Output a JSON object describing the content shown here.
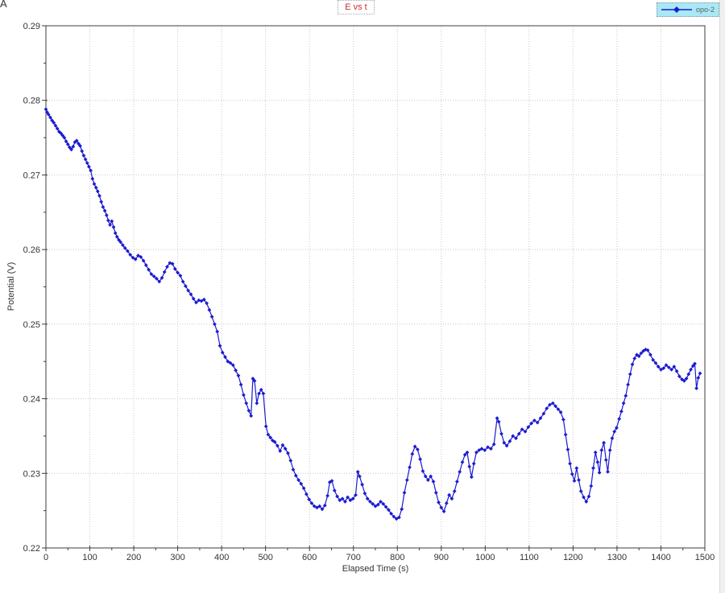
{
  "figure_label": "A",
  "colors": {
    "series": "#1b1bd0",
    "grid": "#c8c8c8",
    "axis": "#3d3d3d",
    "text": "#333333",
    "title": "#cc2b2b",
    "legend_bg": "#a9e9f5",
    "legend_text": "#556066"
  },
  "chart_data": {
    "type": "line",
    "title": "E vs t",
    "xlabel": "Elapsed Time (s)",
    "ylabel": "Potential (V)",
    "xlim": [
      0,
      1500
    ],
    "ylim": [
      0.22,
      0.29
    ],
    "x_ticks": [
      0,
      100,
      200,
      300,
      400,
      500,
      600,
      700,
      800,
      900,
      1000,
      1100,
      1200,
      1300,
      1400,
      1500
    ],
    "y_ticks": [
      0.22,
      0.23,
      0.24,
      0.25,
      0.26,
      0.27,
      0.28,
      0.29
    ],
    "x_minor_step": 50,
    "y_minor_step": 0.005,
    "grid": "dotted",
    "legend_position": "top-right",
    "series": [
      {
        "name": "opo-2",
        "marker": "diamond",
        "points": [
          [
            0,
            0.2788
          ],
          [
            3,
            0.2784
          ],
          [
            6,
            0.2781
          ],
          [
            10,
            0.2777
          ],
          [
            14,
            0.2773
          ],
          [
            18,
            0.277
          ],
          [
            22,
            0.2766
          ],
          [
            26,
            0.2762
          ],
          [
            30,
            0.2758
          ],
          [
            34,
            0.2756
          ],
          [
            38,
            0.2753
          ],
          [
            42,
            0.275
          ],
          [
            46,
            0.2745
          ],
          [
            50,
            0.2741
          ],
          [
            54,
            0.2737
          ],
          [
            58,
            0.2734
          ],
          [
            62,
            0.2738
          ],
          [
            66,
            0.2744
          ],
          [
            70,
            0.2746
          ],
          [
            74,
            0.2742
          ],
          [
            78,
            0.2739
          ],
          [
            82,
            0.2732
          ],
          [
            86,
            0.2726
          ],
          [
            90,
            0.2721
          ],
          [
            94,
            0.2716
          ],
          [
            98,
            0.2711
          ],
          [
            102,
            0.2706
          ],
          [
            106,
            0.2695
          ],
          [
            110,
            0.2688
          ],
          [
            114,
            0.2683
          ],
          [
            118,
            0.2678
          ],
          [
            122,
            0.2672
          ],
          [
            126,
            0.2664
          ],
          [
            130,
            0.2657
          ],
          [
            134,
            0.2652
          ],
          [
            138,
            0.2646
          ],
          [
            142,
            0.2639
          ],
          [
            146,
            0.2633
          ],
          [
            150,
            0.2638
          ],
          [
            154,
            0.263
          ],
          [
            158,
            0.2622
          ],
          [
            162,
            0.2617
          ],
          [
            166,
            0.2613
          ],
          [
            170,
            0.261
          ],
          [
            175,
            0.2606
          ],
          [
            180,
            0.2602
          ],
          [
            186,
            0.2598
          ],
          [
            192,
            0.2593
          ],
          [
            198,
            0.2589
          ],
          [
            204,
            0.2587
          ],
          [
            210,
            0.2592
          ],
          [
            216,
            0.259
          ],
          [
            222,
            0.2585
          ],
          [
            228,
            0.2579
          ],
          [
            234,
            0.2573
          ],
          [
            240,
            0.2567
          ],
          [
            246,
            0.2564
          ],
          [
            252,
            0.2561
          ],
          [
            258,
            0.2557
          ],
          [
            264,
            0.2562
          ],
          [
            270,
            0.257
          ],
          [
            276,
            0.2577
          ],
          [
            282,
            0.2582
          ],
          [
            288,
            0.2581
          ],
          [
            294,
            0.2574
          ],
          [
            300,
            0.2569
          ],
          [
            306,
            0.2565
          ],
          [
            312,
            0.2557
          ],
          [
            318,
            0.2551
          ],
          [
            324,
            0.2545
          ],
          [
            330,
            0.254
          ],
          [
            336,
            0.2534
          ],
          [
            342,
            0.2529
          ],
          [
            348,
            0.2532
          ],
          [
            354,
            0.2531
          ],
          [
            360,
            0.2533
          ],
          [
            366,
            0.2528
          ],
          [
            372,
            0.2519
          ],
          [
            378,
            0.251
          ],
          [
            384,
            0.25
          ],
          [
            390,
            0.249
          ],
          [
            396,
            0.2471
          ],
          [
            402,
            0.2462
          ],
          [
            408,
            0.2456
          ],
          [
            414,
            0.245
          ],
          [
            420,
            0.2448
          ],
          [
            426,
            0.2445
          ],
          [
            432,
            0.2438
          ],
          [
            438,
            0.2431
          ],
          [
            444,
            0.2419
          ],
          [
            450,
            0.2405
          ],
          [
            456,
            0.2394
          ],
          [
            462,
            0.2384
          ],
          [
            467,
            0.2377
          ],
          [
            471,
            0.2427
          ],
          [
            475,
            0.2424
          ],
          [
            480,
            0.2394
          ],
          [
            485,
            0.2407
          ],
          [
            490,
            0.2412
          ],
          [
            495,
            0.2407
          ],
          [
            501,
            0.2363
          ],
          [
            506,
            0.2352
          ],
          [
            511,
            0.2348
          ],
          [
            516,
            0.2344
          ],
          [
            521,
            0.2342
          ],
          [
            527,
            0.2337
          ],
          [
            533,
            0.233
          ],
          [
            539,
            0.2338
          ],
          [
            545,
            0.2333
          ],
          [
            551,
            0.2327
          ],
          [
            557,
            0.2317
          ],
          [
            563,
            0.2305
          ],
          [
            569,
            0.2297
          ],
          [
            575,
            0.2291
          ],
          [
            581,
            0.2286
          ],
          [
            587,
            0.228
          ],
          [
            593,
            0.2272
          ],
          [
            599,
            0.2265
          ],
          [
            605,
            0.226
          ],
          [
            611,
            0.2256
          ],
          [
            617,
            0.2254
          ],
          [
            623,
            0.2256
          ],
          [
            629,
            0.2252
          ],
          [
            635,
            0.2257
          ],
          [
            641,
            0.227
          ],
          [
            646,
            0.2288
          ],
          [
            651,
            0.229
          ],
          [
            657,
            0.2277
          ],
          [
            663,
            0.2269
          ],
          [
            669,
            0.2264
          ],
          [
            675,
            0.2266
          ],
          [
            681,
            0.2262
          ],
          [
            687,
            0.2268
          ],
          [
            693,
            0.2264
          ],
          [
            699,
            0.2266
          ],
          [
            705,
            0.2271
          ],
          [
            710,
            0.2302
          ],
          [
            714,
            0.2296
          ],
          [
            720,
            0.2285
          ],
          [
            726,
            0.2273
          ],
          [
            732,
            0.2266
          ],
          [
            738,
            0.2262
          ],
          [
            744,
            0.2259
          ],
          [
            750,
            0.2256
          ],
          [
            756,
            0.2258
          ],
          [
            762,
            0.2262
          ],
          [
            768,
            0.2259
          ],
          [
            774,
            0.2255
          ],
          [
            780,
            0.2251
          ],
          [
            786,
            0.2246
          ],
          [
            792,
            0.2242
          ],
          [
            798,
            0.2239
          ],
          [
            804,
            0.2241
          ],
          [
            810,
            0.2252
          ],
          [
            816,
            0.2274
          ],
          [
            822,
            0.2291
          ],
          [
            828,
            0.2308
          ],
          [
            834,
            0.2326
          ],
          [
            840,
            0.2336
          ],
          [
            846,
            0.2332
          ],
          [
            852,
            0.2319
          ],
          [
            858,
            0.2303
          ],
          [
            864,
            0.2296
          ],
          [
            870,
            0.2291
          ],
          [
            876,
            0.2296
          ],
          [
            882,
            0.2289
          ],
          [
            888,
            0.2274
          ],
          [
            894,
            0.2261
          ],
          [
            900,
            0.2254
          ],
          [
            906,
            0.2249
          ],
          [
            912,
            0.226
          ],
          [
            918,
            0.2271
          ],
          [
            924,
            0.2266
          ],
          [
            930,
            0.2276
          ],
          [
            936,
            0.2289
          ],
          [
            942,
            0.2302
          ],
          [
            948,
            0.2315
          ],
          [
            954,
            0.2325
          ],
          [
            959,
            0.2328
          ],
          [
            964,
            0.2309
          ],
          [
            969,
            0.2295
          ],
          [
            974,
            0.2313
          ],
          [
            980,
            0.2328
          ],
          [
            986,
            0.2331
          ],
          [
            992,
            0.2333
          ],
          [
            999,
            0.2331
          ],
          [
            1006,
            0.2335
          ],
          [
            1013,
            0.2333
          ],
          [
            1020,
            0.2339
          ],
          [
            1027,
            0.2374
          ],
          [
            1031,
            0.2369
          ],
          [
            1037,
            0.2353
          ],
          [
            1043,
            0.2341
          ],
          [
            1049,
            0.2337
          ],
          [
            1056,
            0.2343
          ],
          [
            1063,
            0.235
          ],
          [
            1070,
            0.2347
          ],
          [
            1077,
            0.2353
          ],
          [
            1084,
            0.2359
          ],
          [
            1091,
            0.2356
          ],
          [
            1098,
            0.2362
          ],
          [
            1105,
            0.2367
          ],
          [
            1112,
            0.2371
          ],
          [
            1119,
            0.2368
          ],
          [
            1126,
            0.2374
          ],
          [
            1133,
            0.238
          ],
          [
            1140,
            0.2387
          ],
          [
            1147,
            0.2392
          ],
          [
            1154,
            0.2394
          ],
          [
            1160,
            0.239
          ],
          [
            1166,
            0.2386
          ],
          [
            1172,
            0.2382
          ],
          [
            1178,
            0.2372
          ],
          [
            1183,
            0.2352
          ],
          [
            1188,
            0.2332
          ],
          [
            1193,
            0.2313
          ],
          [
            1198,
            0.2299
          ],
          [
            1203,
            0.229
          ],
          [
            1208,
            0.2307
          ],
          [
            1213,
            0.2291
          ],
          [
            1218,
            0.2276
          ],
          [
            1224,
            0.2268
          ],
          [
            1230,
            0.2262
          ],
          [
            1236,
            0.2269
          ],
          [
            1241,
            0.2283
          ],
          [
            1246,
            0.2307
          ],
          [
            1251,
            0.2328
          ],
          [
            1256,
            0.2315
          ],
          [
            1260,
            0.2301
          ],
          [
            1265,
            0.2331
          ],
          [
            1270,
            0.2341
          ],
          [
            1275,
            0.2318
          ],
          [
            1279,
            0.2302
          ],
          [
            1284,
            0.2331
          ],
          [
            1289,
            0.2347
          ],
          [
            1294,
            0.2356
          ],
          [
            1299,
            0.2361
          ],
          [
            1305,
            0.2373
          ],
          [
            1310,
            0.2383
          ],
          [
            1315,
            0.2394
          ],
          [
            1320,
            0.2404
          ],
          [
            1325,
            0.2419
          ],
          [
            1330,
            0.2433
          ],
          [
            1335,
            0.2446
          ],
          [
            1340,
            0.2454
          ],
          [
            1345,
            0.2459
          ],
          [
            1350,
            0.2457
          ],
          [
            1355,
            0.2461
          ],
          [
            1360,
            0.2464
          ],
          [
            1365,
            0.2466
          ],
          [
            1370,
            0.2465
          ],
          [
            1376,
            0.2459
          ],
          [
            1382,
            0.2452
          ],
          [
            1388,
            0.2448
          ],
          [
            1394,
            0.2443
          ],
          [
            1400,
            0.2439
          ],
          [
            1406,
            0.2441
          ],
          [
            1412,
            0.2445
          ],
          [
            1418,
            0.2442
          ],
          [
            1424,
            0.2439
          ],
          [
            1430,
            0.2443
          ],
          [
            1436,
            0.2437
          ],
          [
            1442,
            0.243
          ],
          [
            1448,
            0.2426
          ],
          [
            1453,
            0.2424
          ],
          [
            1458,
            0.2427
          ],
          [
            1463,
            0.2433
          ],
          [
            1468,
            0.2439
          ],
          [
            1473,
            0.2444
          ],
          [
            1477,
            0.2447
          ],
          [
            1481,
            0.2414
          ],
          [
            1485,
            0.2428
          ],
          [
            1489,
            0.2434
          ]
        ]
      }
    ]
  }
}
